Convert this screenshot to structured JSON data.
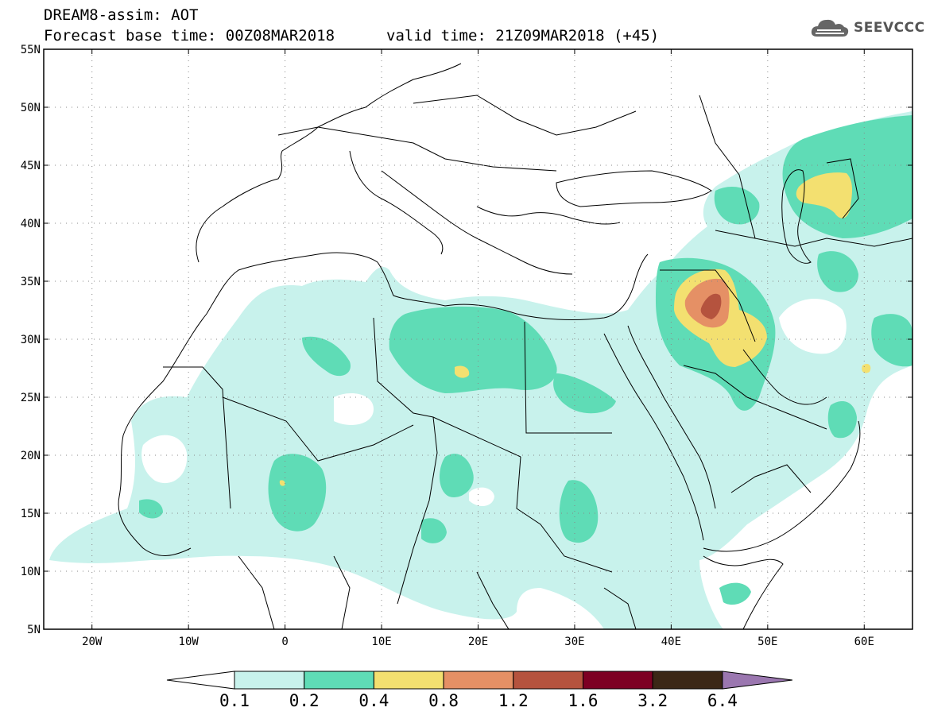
{
  "header": {
    "line1": "DREAM8-assim: AOT",
    "line2_left": "Forecast base time: 00Z08MAR2018",
    "line2_right": "valid time: 21Z09MAR2018 (+45)",
    "logo_text": "SEEVCCC",
    "logo_icon": "cloud-icon"
  },
  "map": {
    "lon_range": [
      -25,
      65
    ],
    "lat_range": [
      5,
      55
    ],
    "lat_ticks": [
      "55N",
      "50N",
      "45N",
      "40N",
      "35N",
      "30N",
      "25N",
      "20N",
      "15N",
      "10N",
      "5N"
    ],
    "lon_ticks": [
      "20W",
      "10W",
      "0",
      "10E",
      "20E",
      "30E",
      "40E",
      "50E",
      "60E"
    ],
    "grid": "dotted"
  },
  "colorbar": {
    "labels": [
      "0.1",
      "0.2",
      "0.4",
      "0.8",
      "1.2",
      "1.6",
      "3.2",
      "6.4"
    ],
    "colors": [
      "#c8f2ec",
      "#5fdcb6",
      "#f3e070",
      "#e59065",
      "#b5533e",
      "#7d0023",
      "#3b2716",
      "#9b77b0"
    ]
  }
}
